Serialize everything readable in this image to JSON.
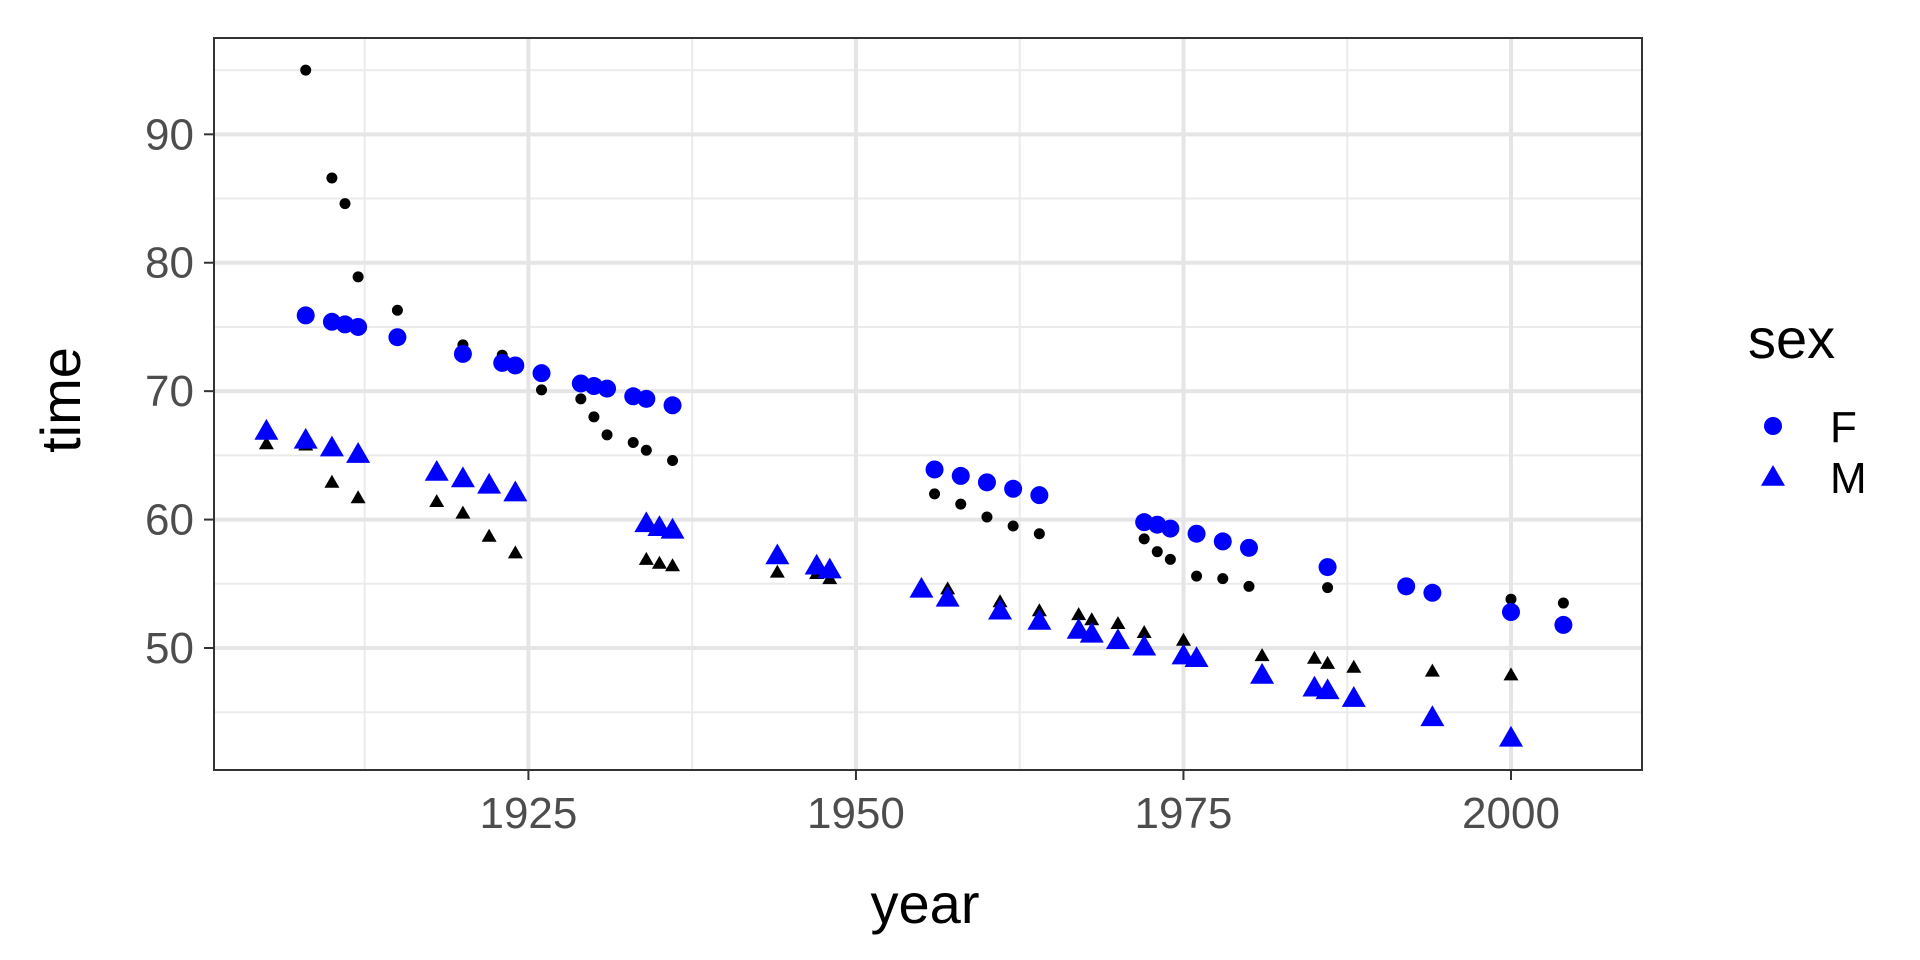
{
  "chart_data": {
    "type": "scatter",
    "xlabel": "year",
    "ylabel": "time",
    "xlim": [
      1901,
      2010
    ],
    "ylim": [
      40.5,
      97.5
    ],
    "x_ticks": [
      1925,
      1950,
      1975,
      2000
    ],
    "y_ticks": [
      50,
      60,
      70,
      80,
      90
    ],
    "x_minor_ticks": [
      1912.5,
      1937.5,
      1962.5,
      1987.5
    ],
    "y_minor_ticks": [
      45,
      55,
      65,
      75,
      85,
      95
    ],
    "grid": true,
    "legend": {
      "title": "sex",
      "position": "right",
      "items": [
        {
          "label": "F",
          "shape": "circle",
          "color": "#0000ff"
        },
        {
          "label": "M",
          "shape": "triangle",
          "color": "#0000ff"
        }
      ]
    },
    "series": [
      {
        "name": "F",
        "shape": "circle",
        "color": "#0000ff",
        "size": "large",
        "points": [
          [
            1908,
            75.9
          ],
          [
            1910,
            75.4
          ],
          [
            1911,
            75.2
          ],
          [
            1912,
            75.0
          ],
          [
            1915,
            74.2
          ],
          [
            1920,
            72.9
          ],
          [
            1923,
            72.2
          ],
          [
            1924,
            72.0
          ],
          [
            1926,
            71.4
          ],
          [
            1929,
            70.6
          ],
          [
            1930,
            70.4
          ],
          [
            1931,
            70.2
          ],
          [
            1933,
            69.6
          ],
          [
            1934,
            69.4
          ],
          [
            1936,
            68.9
          ],
          [
            1956,
            63.9
          ],
          [
            1958,
            63.4
          ],
          [
            1960,
            62.9
          ],
          [
            1962,
            62.4
          ],
          [
            1964,
            61.9
          ],
          [
            1972,
            59.8
          ],
          [
            1973,
            59.6
          ],
          [
            1974,
            59.3
          ],
          [
            1976,
            58.9
          ],
          [
            1978,
            58.3
          ],
          [
            1980,
            57.8
          ],
          [
            1986,
            56.3
          ],
          [
            1992,
            54.8
          ],
          [
            1994,
            54.3
          ],
          [
            2000,
            52.8
          ],
          [
            2004,
            51.8
          ]
        ]
      },
      {
        "name": "M",
        "shape": "triangle",
        "color": "#0000ff",
        "size": "large",
        "points": [
          [
            1905,
            66.9
          ],
          [
            1908,
            66.2
          ],
          [
            1910,
            65.6
          ],
          [
            1912,
            65.1
          ],
          [
            1918,
            63.7
          ],
          [
            1920,
            63.2
          ],
          [
            1922,
            62.7
          ],
          [
            1924,
            62.1
          ],
          [
            1934,
            59.7
          ],
          [
            1935,
            59.4
          ],
          [
            1936,
            59.2
          ],
          [
            1944,
            57.2
          ],
          [
            1947,
            56.4
          ],
          [
            1948,
            56.1
          ],
          [
            1955,
            54.6
          ],
          [
            1957,
            53.9
          ],
          [
            1961,
            52.9
          ],
          [
            1964,
            52.1
          ],
          [
            1967,
            51.4
          ],
          [
            1968,
            51.1
          ],
          [
            1970,
            50.6
          ],
          [
            1972,
            50.1
          ],
          [
            1975,
            49.4
          ],
          [
            1976,
            49.2
          ],
          [
            1981,
            47.9
          ],
          [
            1985,
            46.9
          ],
          [
            1986,
            46.7
          ],
          [
            1988,
            46.1
          ],
          [
            1994,
            44.6
          ],
          [
            2000,
            43.0
          ]
        ]
      },
      {
        "name": "",
        "shape": "circle",
        "color": "#000000",
        "size": "small",
        "points": [
          [
            1908,
            95.0
          ],
          [
            1910,
            86.6
          ],
          [
            1911,
            84.6
          ],
          [
            1912,
            78.9
          ],
          [
            1915,
            76.3
          ],
          [
            1920,
            73.6
          ],
          [
            1923,
            72.8
          ],
          [
            1926,
            70.1
          ],
          [
            1929,
            69.4
          ],
          [
            1930,
            68.0
          ],
          [
            1931,
            66.6
          ],
          [
            1933,
            66.0
          ],
          [
            1934,
            65.4
          ],
          [
            1936,
            64.6
          ],
          [
            1956,
            62.0
          ],
          [
            1958,
            61.2
          ],
          [
            1960,
            60.2
          ],
          [
            1962,
            59.5
          ],
          [
            1964,
            58.9
          ],
          [
            1972,
            58.5
          ],
          [
            1973,
            57.5
          ],
          [
            1974,
            56.9
          ],
          [
            1976,
            55.6
          ],
          [
            1978,
            55.4
          ],
          [
            1980,
            54.8
          ],
          [
            1986,
            54.7
          ],
          [
            1992,
            54.9
          ],
          [
            2000,
            53.8
          ],
          [
            2004,
            53.5
          ]
        ]
      },
      {
        "name": "",
        "shape": "triangle",
        "color": "#000000",
        "size": "small",
        "points": [
          [
            1905,
            65.9
          ],
          [
            1908,
            65.8
          ],
          [
            1910,
            62.9
          ],
          [
            1912,
            61.7
          ],
          [
            1918,
            61.4
          ],
          [
            1920,
            60.5
          ],
          [
            1922,
            58.7
          ],
          [
            1924,
            57.4
          ],
          [
            1934,
            56.9
          ],
          [
            1935,
            56.6
          ],
          [
            1936,
            56.4
          ],
          [
            1944,
            55.9
          ],
          [
            1947,
            55.8
          ],
          [
            1948,
            55.4
          ],
          [
            1955,
            54.7
          ],
          [
            1957,
            54.6
          ],
          [
            1961,
            53.6
          ],
          [
            1964,
            52.9
          ],
          [
            1967,
            52.6
          ],
          [
            1968,
            52.2
          ],
          [
            1970,
            51.9
          ],
          [
            1972,
            51.2
          ],
          [
            1975,
            50.6
          ],
          [
            1981,
            49.4
          ],
          [
            1985,
            49.2
          ],
          [
            1986,
            48.8
          ],
          [
            1988,
            48.5
          ],
          [
            1994,
            48.2
          ],
          [
            2000,
            47.9
          ]
        ]
      }
    ]
  }
}
